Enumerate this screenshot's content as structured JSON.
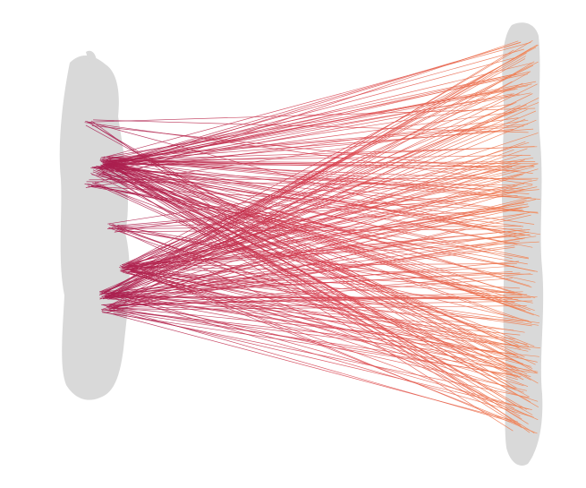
{
  "diagram": {
    "type": "bipartite-flow-lines",
    "left_cluster": {
      "fill": "#d9d9d9"
    },
    "right_cluster": {
      "fill": "#d9d9d9"
    },
    "line_gradient": {
      "start": "#a51a4e",
      "mid": "#d9414f",
      "end": "#f4844f"
    },
    "background": "#ffffff",
    "line_count_hint": 260
  }
}
